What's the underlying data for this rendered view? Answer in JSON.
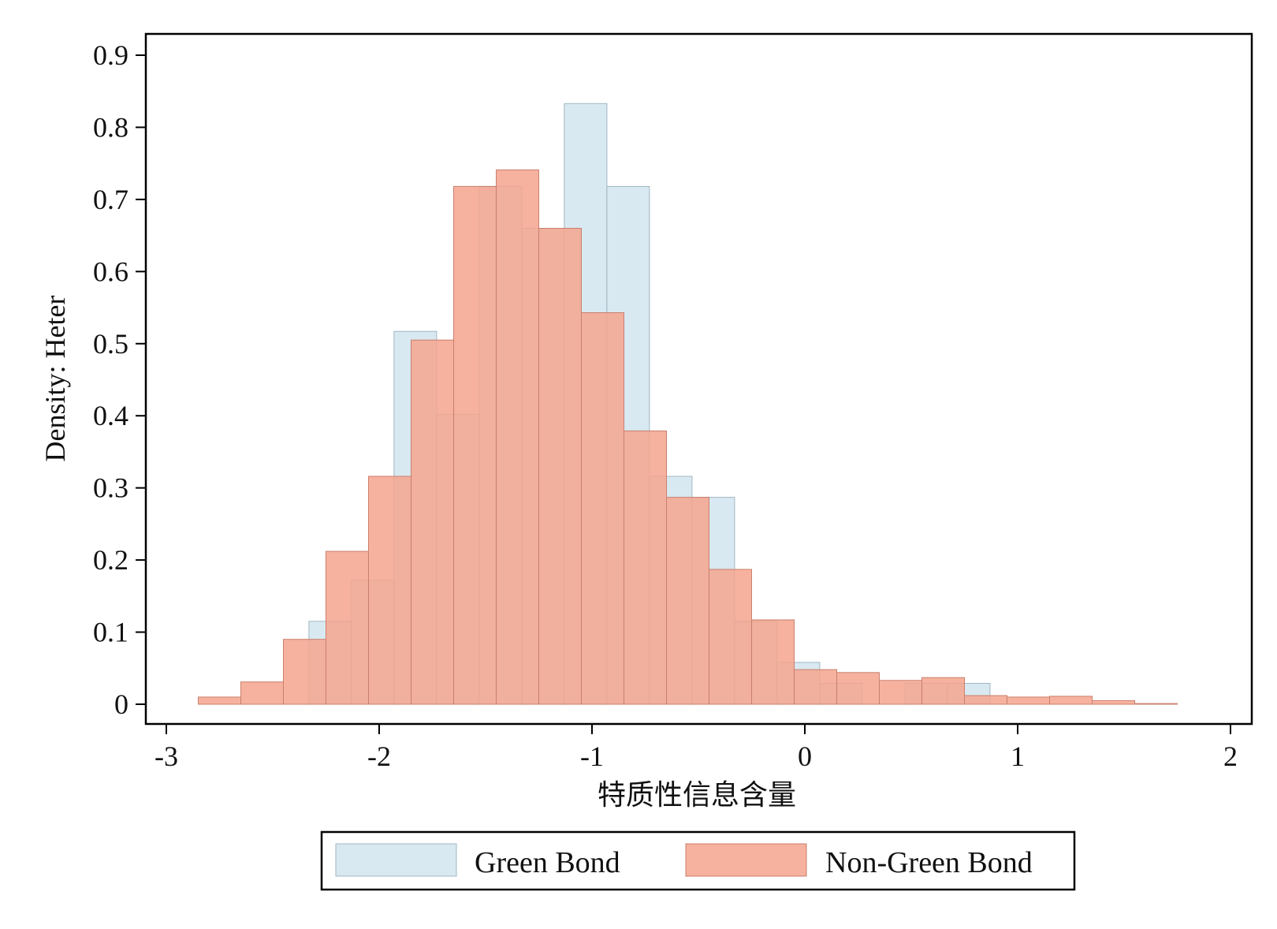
{
  "chart_data": {
    "type": "bar",
    "xlabel": "特质性信息含量",
    "ylabel": "Density: Heter",
    "xlim": [
      -3.1,
      2.1
    ],
    "ylim": [
      0,
      0.93
    ],
    "xticks": [
      -3,
      -2,
      -1,
      0,
      1,
      2
    ],
    "xtick_labels": [
      "-3",
      "-2",
      "-1",
      "0",
      "1",
      "2"
    ],
    "yticks": [
      0,
      0.1,
      0.2,
      0.3,
      0.4,
      0.5,
      0.6,
      0.7,
      0.8,
      0.9
    ],
    "ytick_labels": [
      "0",
      "0.1",
      "0.2",
      "0.3",
      "0.4",
      "0.5",
      "0.6",
      "0.7",
      "0.8",
      "0.9"
    ],
    "grid": false,
    "legend_position": "bottom",
    "series": [
      {
        "name": "Green Bond",
        "color": "#d9e9f1",
        "edge_color": "#9fb6c3",
        "bin_width": 0.2,
        "bin_start": -2.33,
        "values": [
          0.115,
          0.172,
          0.517,
          0.402,
          0.718,
          0.66,
          0.833,
          0.718,
          0.316,
          0.287,
          0.115,
          0.058,
          0.029,
          0.0,
          0.029,
          0.029,
          0.0,
          0.0,
          0.0
        ]
      },
      {
        "name": "Non-Green Bond",
        "color": "#f4a58e",
        "edge_color": "#c97f6c",
        "bin_width": 0.2,
        "bin_start": -2.85,
        "values": [
          0.01,
          0.031,
          0.09,
          0.212,
          0.316,
          0.505,
          0.718,
          0.741,
          0.66,
          0.543,
          0.379,
          0.287,
          0.187,
          0.117,
          0.048,
          0.044,
          0.033,
          0.037,
          0.012,
          0.01,
          0.011,
          0.005,
          0.001
        ]
      }
    ]
  }
}
